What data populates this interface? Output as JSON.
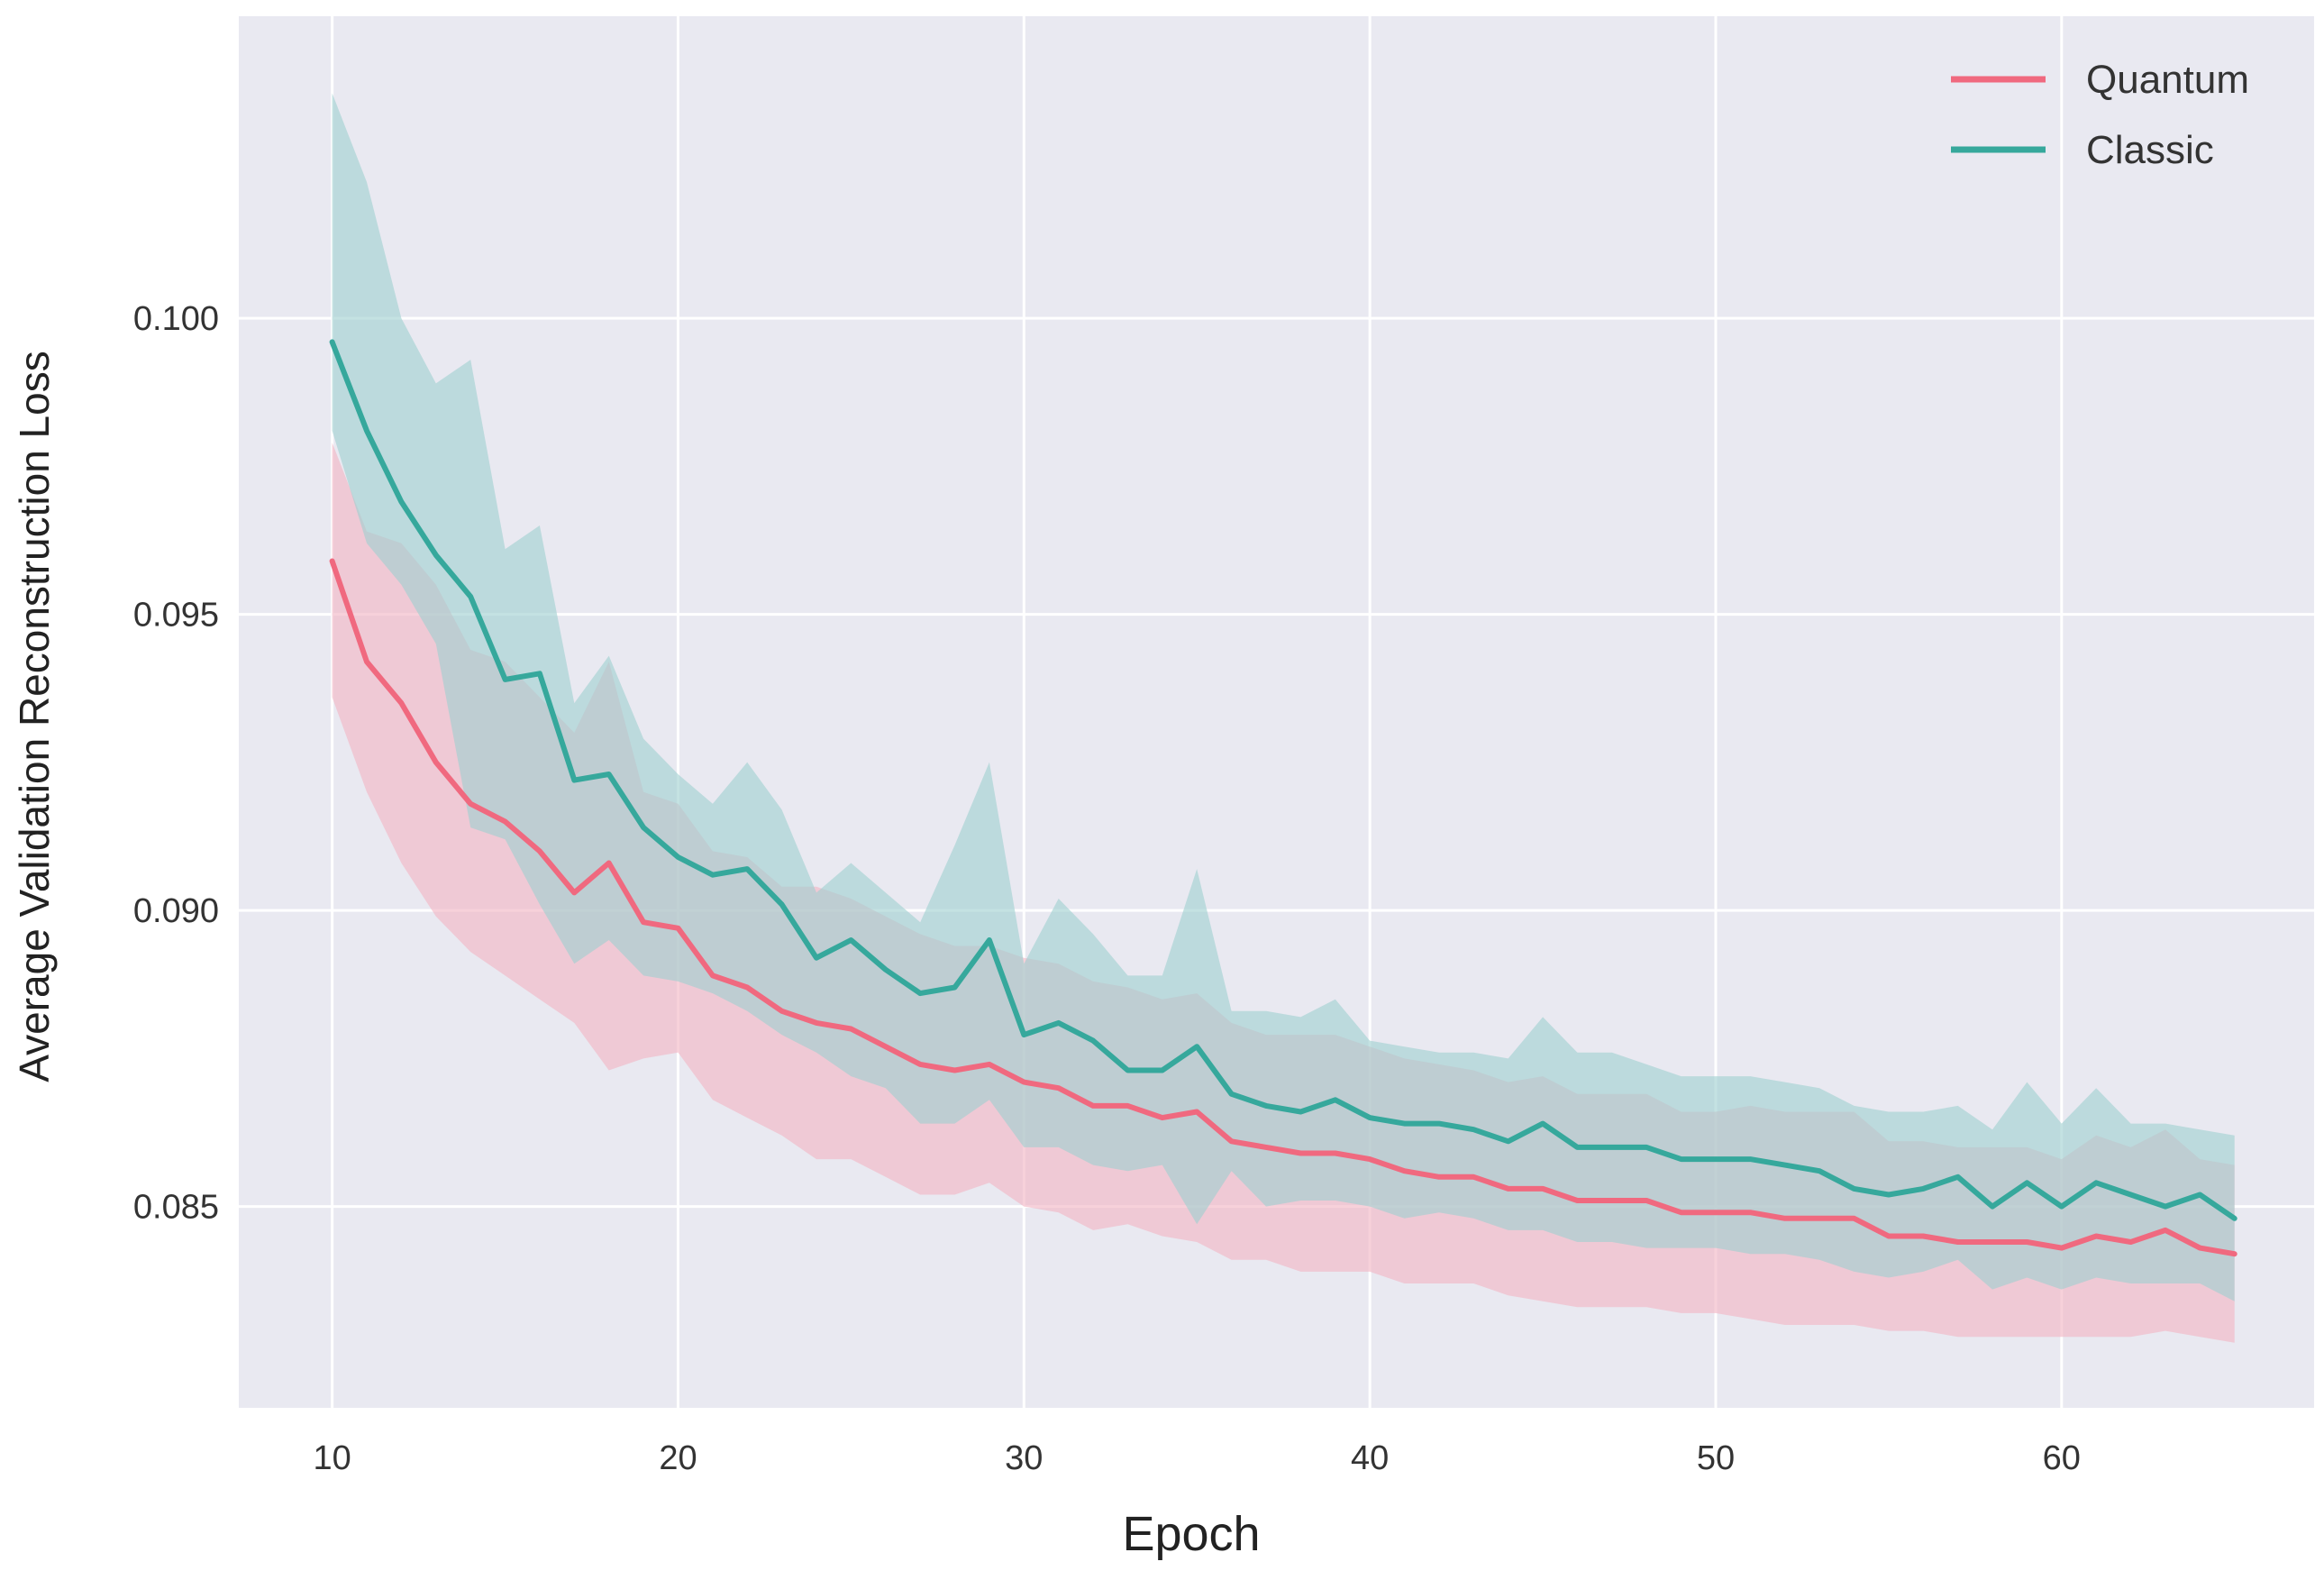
{
  "chart_data": {
    "type": "line",
    "title": "",
    "xlabel": "Epoch",
    "ylabel": "Average Validation Reconstruction Loss",
    "xlim": [
      7.3,
      67.3
    ],
    "ylim": [
      0.0816,
      0.1051
    ],
    "xticks": [
      10,
      20,
      30,
      40,
      50,
      60
    ],
    "xtick_labels": [
      "10",
      "20",
      "30",
      "40",
      "50",
      "60"
    ],
    "yticks": [
      0.085,
      0.09,
      0.095,
      0.1
    ],
    "ytick_labels": [
      "0.085",
      "0.090",
      "0.095",
      "0.100"
    ],
    "grid": true,
    "legend": "top-right",
    "background": "#e9e9f1",
    "x": [
      10,
      11,
      12,
      13,
      14,
      15,
      16,
      17,
      18,
      19,
      20,
      21,
      22,
      23,
      24,
      25,
      26,
      27,
      28,
      29,
      30,
      31,
      32,
      33,
      34,
      35,
      36,
      37,
      38,
      39,
      40,
      41,
      42,
      43,
      44,
      45,
      46,
      47,
      48,
      49,
      50,
      51,
      52,
      53,
      54,
      55,
      56,
      57,
      58,
      59,
      60,
      61,
      62,
      63,
      64,
      65
    ],
    "series": [
      {
        "name": "Quantum",
        "color": "#f0697f",
        "band_color": "#f2b4c4",
        "values": [
          0.0959,
          0.0942,
          0.0935,
          0.0925,
          0.0918,
          0.0915,
          0.091,
          0.0903,
          0.0908,
          0.0898,
          0.0897,
          0.0889,
          0.0887,
          0.0883,
          0.0881,
          0.088,
          0.0877,
          0.0874,
          0.0873,
          0.0874,
          0.0871,
          0.087,
          0.0867,
          0.0867,
          0.0865,
          0.0866,
          0.0861,
          0.086,
          0.0859,
          0.0859,
          0.0858,
          0.0856,
          0.0855,
          0.0855,
          0.0853,
          0.0853,
          0.0851,
          0.0851,
          0.0851,
          0.0849,
          0.0849,
          0.0849,
          0.0848,
          0.0848,
          0.0848,
          0.0845,
          0.0845,
          0.0844,
          0.0844,
          0.0844,
          0.0843,
          0.0845,
          0.0844,
          0.0846,
          0.0843,
          0.0842
        ],
        "lower": [
          0.0936,
          0.092,
          0.0908,
          0.0899,
          0.0893,
          0.0889,
          0.0885,
          0.0881,
          0.0873,
          0.0875,
          0.0876,
          0.0868,
          0.0865,
          0.0862,
          0.0858,
          0.0858,
          0.0855,
          0.0852,
          0.0852,
          0.0854,
          0.085,
          0.0849,
          0.0846,
          0.0847,
          0.0845,
          0.0844,
          0.0841,
          0.0841,
          0.0839,
          0.0839,
          0.0839,
          0.0837,
          0.0837,
          0.0837,
          0.0835,
          0.0834,
          0.0833,
          0.0833,
          0.0833,
          0.0832,
          0.0832,
          0.0831,
          0.083,
          0.083,
          0.083,
          0.0829,
          0.0829,
          0.0828,
          0.0828,
          0.0828,
          0.0828,
          0.0828,
          0.0828,
          0.0829,
          0.0828,
          0.0827
        ],
        "upper": [
          0.0979,
          0.0964,
          0.0962,
          0.0955,
          0.0944,
          0.0942,
          0.0936,
          0.093,
          0.0942,
          0.092,
          0.0918,
          0.091,
          0.0909,
          0.0904,
          0.0904,
          0.0902,
          0.0899,
          0.0896,
          0.0894,
          0.0894,
          0.0892,
          0.0891,
          0.0888,
          0.0887,
          0.0885,
          0.0886,
          0.0881,
          0.0879,
          0.0879,
          0.0879,
          0.0877,
          0.0875,
          0.0874,
          0.0873,
          0.0871,
          0.0872,
          0.0869,
          0.0869,
          0.0869,
          0.0866,
          0.0866,
          0.0867,
          0.0866,
          0.0866,
          0.0866,
          0.0861,
          0.0861,
          0.086,
          0.086,
          0.086,
          0.0858,
          0.0862,
          0.086,
          0.0863,
          0.0858,
          0.0857
        ]
      },
      {
        "name": "Classic",
        "color": "#36a89c",
        "band_color": "#9fd0d0",
        "values": [
          0.0996,
          0.0981,
          0.0969,
          0.096,
          0.0953,
          0.0939,
          0.094,
          0.0922,
          0.0923,
          0.0914,
          0.0909,
          0.0906,
          0.0907,
          0.0901,
          0.0892,
          0.0895,
          0.089,
          0.0886,
          0.0887,
          0.0895,
          0.0879,
          0.0881,
          0.0878,
          0.0873,
          0.0873,
          0.0877,
          0.0869,
          0.0867,
          0.0866,
          0.0868,
          0.0865,
          0.0864,
          0.0864,
          0.0863,
          0.0861,
          0.0864,
          0.086,
          0.086,
          0.086,
          0.0858,
          0.0858,
          0.0858,
          0.0857,
          0.0856,
          0.0853,
          0.0852,
          0.0853,
          0.0855,
          0.085,
          0.0854,
          0.085,
          0.0854,
          0.0852,
          0.085,
          0.0852,
          0.0848
        ],
        "lower": [
          0.0981,
          0.0962,
          0.0955,
          0.0945,
          0.0914,
          0.0912,
          0.0901,
          0.0891,
          0.0895,
          0.0889,
          0.0888,
          0.0886,
          0.0883,
          0.0879,
          0.0876,
          0.0872,
          0.087,
          0.0864,
          0.0864,
          0.0868,
          0.086,
          0.086,
          0.0857,
          0.0856,
          0.0857,
          0.0847,
          0.0856,
          0.085,
          0.0851,
          0.0851,
          0.085,
          0.0848,
          0.0849,
          0.0848,
          0.0846,
          0.0846,
          0.0844,
          0.0844,
          0.0843,
          0.0843,
          0.0843,
          0.0842,
          0.0842,
          0.0841,
          0.0839,
          0.0838,
          0.0839,
          0.0841,
          0.0836,
          0.0838,
          0.0836,
          0.0838,
          0.0837,
          0.0837,
          0.0837,
          0.0834
        ],
        "upper": [
          0.1038,
          0.1023,
          0.1,
          0.0989,
          0.0993,
          0.0961,
          0.0965,
          0.0935,
          0.0943,
          0.0929,
          0.0923,
          0.0918,
          0.0925,
          0.0917,
          0.0903,
          0.0908,
          0.0903,
          0.0898,
          0.0911,
          0.0925,
          0.0891,
          0.0902,
          0.0896,
          0.0889,
          0.0889,
          0.0907,
          0.0883,
          0.0883,
          0.0882,
          0.0885,
          0.0878,
          0.0877,
          0.0876,
          0.0876,
          0.0875,
          0.0882,
          0.0876,
          0.0876,
          0.0874,
          0.0872,
          0.0872,
          0.0872,
          0.0871,
          0.087,
          0.0867,
          0.0866,
          0.0866,
          0.0867,
          0.0863,
          0.0871,
          0.0864,
          0.087,
          0.0864,
          0.0864,
          0.0863,
          0.0862
        ]
      }
    ]
  }
}
